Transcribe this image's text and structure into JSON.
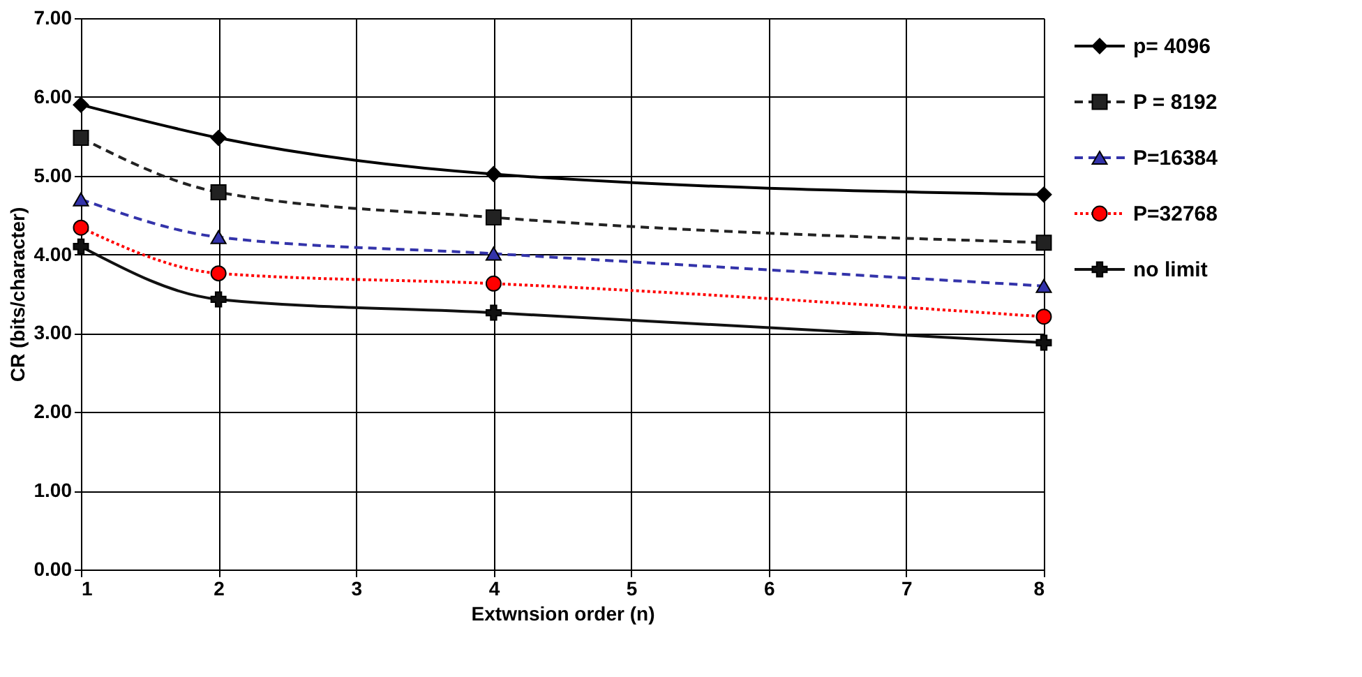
{
  "chart_data": {
    "type": "line",
    "xlabel": "Extwnsion order (n)",
    "ylabel": "CR (bits/character)",
    "x": [
      1,
      2,
      4,
      8
    ],
    "xlim": [
      1,
      8
    ],
    "xticks": [
      1,
      2,
      3,
      4,
      5,
      6,
      7,
      8
    ],
    "ylim": [
      0,
      7
    ],
    "yticks": [
      {
        "value": 0,
        "label": "0.00"
      },
      {
        "value": 1,
        "label": "1.00"
      },
      {
        "value": 2,
        "label": "2.00"
      },
      {
        "value": 3,
        "label": "3.00"
      },
      {
        "value": 4,
        "label": "4.00"
      },
      {
        "value": 5,
        "label": "5.00"
      },
      {
        "value": 6,
        "label": "6.00"
      },
      {
        "value": 7,
        "label": "7.00"
      }
    ],
    "grid": true,
    "legend": "right",
    "series": [
      {
        "name": "p= 4096",
        "color": "#000000",
        "values": [
          5.9,
          5.48,
          5.02,
          4.76
        ],
        "marker": "diamond",
        "line_style": "solid"
      },
      {
        "name": "P = 8192",
        "color": "#222222",
        "values": [
          5.48,
          4.79,
          4.47,
          4.15
        ],
        "marker": "square",
        "line_style": "dashed"
      },
      {
        "name": "P=16384",
        "color": "#3333aa",
        "values": [
          4.7,
          4.22,
          4.01,
          3.6
        ],
        "marker": "triangle",
        "line_style": "dashed"
      },
      {
        "name": "P=32768",
        "color": "#ff0000",
        "values": [
          4.34,
          3.76,
          3.63,
          3.21
        ],
        "marker": "circle",
        "line_style": "dotted"
      },
      {
        "name": "no limit",
        "color": "#111111",
        "values": [
          4.1,
          3.43,
          3.26,
          2.88
        ],
        "marker": "cross",
        "line_style": "solid"
      }
    ]
  }
}
